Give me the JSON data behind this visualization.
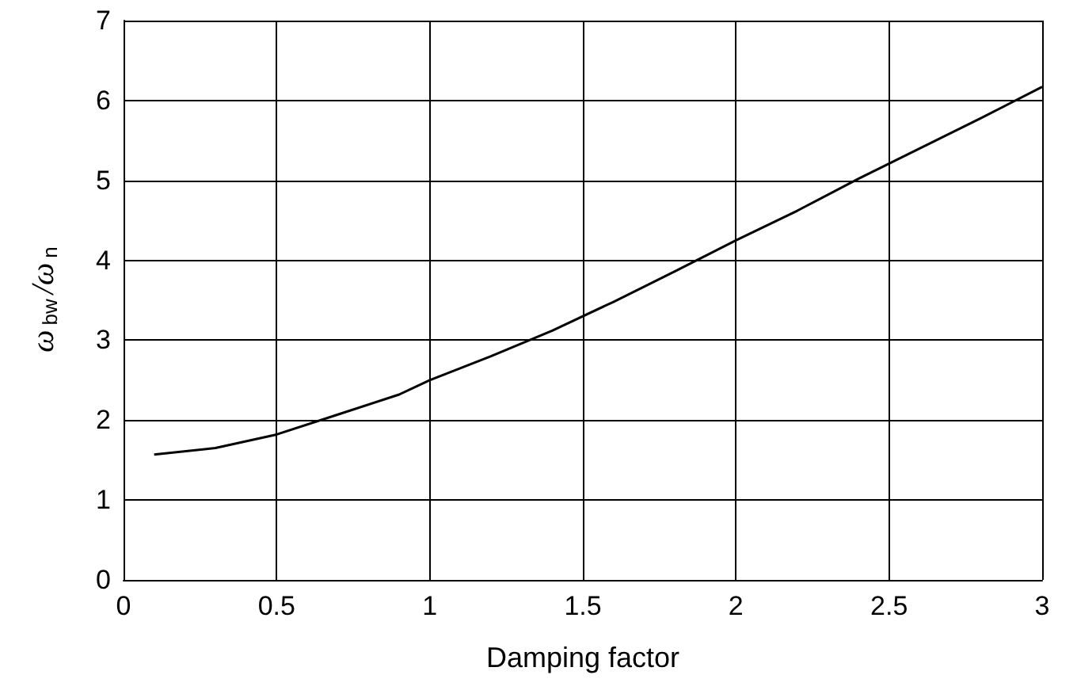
{
  "chart_data": {
    "type": "line",
    "xlabel": "Damping factor",
    "ylabel": "ω$_{bw}$/ω$_{n}$",
    "series": [
      {
        "color": "#000000",
        "x": [
          0.1,
          0.3,
          0.5,
          0.7,
          0.9,
          1.0,
          1.2,
          1.4,
          1.6,
          1.8,
          2.0,
          2.2,
          2.4,
          2.6,
          2.8,
          3.0
        ],
        "values": [
          1.57,
          1.65,
          1.82,
          2.07,
          2.32,
          2.5,
          2.8,
          3.12,
          3.48,
          3.86,
          4.25,
          4.62,
          5.02,
          5.4,
          5.78,
          6.17
        ]
      }
    ],
    "xlim": [
      0,
      3
    ],
    "xticks": [
      0,
      0.5,
      1,
      1.5,
      2,
      2.5,
      3
    ],
    "ylim": [
      0,
      7
    ],
    "yticks": [
      0,
      1,
      2,
      3,
      4,
      5,
      6,
      7
    ],
    "grid": true,
    "marker": "none",
    "line_style": "solid"
  }
}
